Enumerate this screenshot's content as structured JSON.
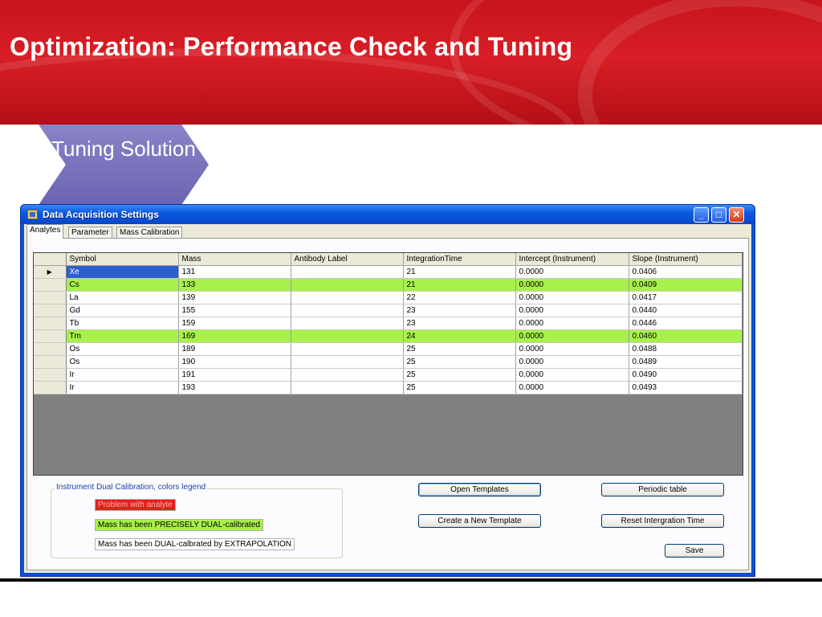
{
  "slide": {
    "title": "Optimization: Performance Check and Tuning",
    "chevron_label": "Tuning Solution"
  },
  "window": {
    "title": "Data Acquisition Settings"
  },
  "tabs": [
    "Analytes",
    "Parameter",
    "Mass Calibration"
  ],
  "grid": {
    "columns": [
      "Symbol",
      "Mass",
      "Antibody Label",
      "IntegrationTime",
      "Intercept (Instrument)",
      "Slope (Instrument)"
    ],
    "rows": [
      {
        "symbol": "Xe",
        "mass": "131",
        "label": "",
        "time": "21",
        "intercept": "0.0000",
        "slope": "0.0406",
        "highlight": "none",
        "current": true
      },
      {
        "symbol": "Cs",
        "mass": "133",
        "label": "",
        "time": "21",
        "intercept": "0.0000",
        "slope": "0.0409",
        "highlight": "green"
      },
      {
        "symbol": "La",
        "mass": "139",
        "label": "",
        "time": "22",
        "intercept": "0.0000",
        "slope": "0.0417",
        "highlight": "none"
      },
      {
        "symbol": "Gd",
        "mass": "155",
        "label": "",
        "time": "23",
        "intercept": "0.0000",
        "slope": "0.0440",
        "highlight": "none"
      },
      {
        "symbol": "Tb",
        "mass": "159",
        "label": "",
        "time": "23",
        "intercept": "0.0000",
        "slope": "0.0446",
        "highlight": "none"
      },
      {
        "symbol": "Tm",
        "mass": "169",
        "label": "",
        "time": "24",
        "intercept": "0.0000",
        "slope": "0.0460",
        "highlight": "green"
      },
      {
        "symbol": "Os",
        "mass": "189",
        "label": "",
        "time": "25",
        "intercept": "0.0000",
        "slope": "0.0488",
        "highlight": "none"
      },
      {
        "symbol": "Os",
        "mass": "190",
        "label": "",
        "time": "25",
        "intercept": "0.0000",
        "slope": "0.0489",
        "highlight": "none"
      },
      {
        "symbol": "Ir",
        "mass": "191",
        "label": "",
        "time": "25",
        "intercept": "0.0000",
        "slope": "0.0490",
        "highlight": "none"
      },
      {
        "symbol": "Ir",
        "mass": "193",
        "label": "",
        "time": "25",
        "intercept": "0.0000",
        "slope": "0.0493",
        "highlight": "none"
      }
    ]
  },
  "legend": {
    "title": "Instrument Dual Calibration, colors legend",
    "problem": "Problem with analyte",
    "precise": "Mass has been PRECISELY DUAL-calibrated",
    "extrapolation": "Mass has been DUAL-calbrated by EXTRAPOLATION"
  },
  "buttons": {
    "open_templates": "Open Templates",
    "periodic_table": "Periodic table",
    "create_template": "Create a  New Template",
    "reset_time": "Reset Intergration Time",
    "save": "Save"
  },
  "colors": {
    "banner_red": "#d81e26",
    "chevron": "#6b64b2",
    "calibrated_green": "#a8f04a",
    "problem_red": "#ee1c1c",
    "selection_blue": "#2b5fd0"
  }
}
